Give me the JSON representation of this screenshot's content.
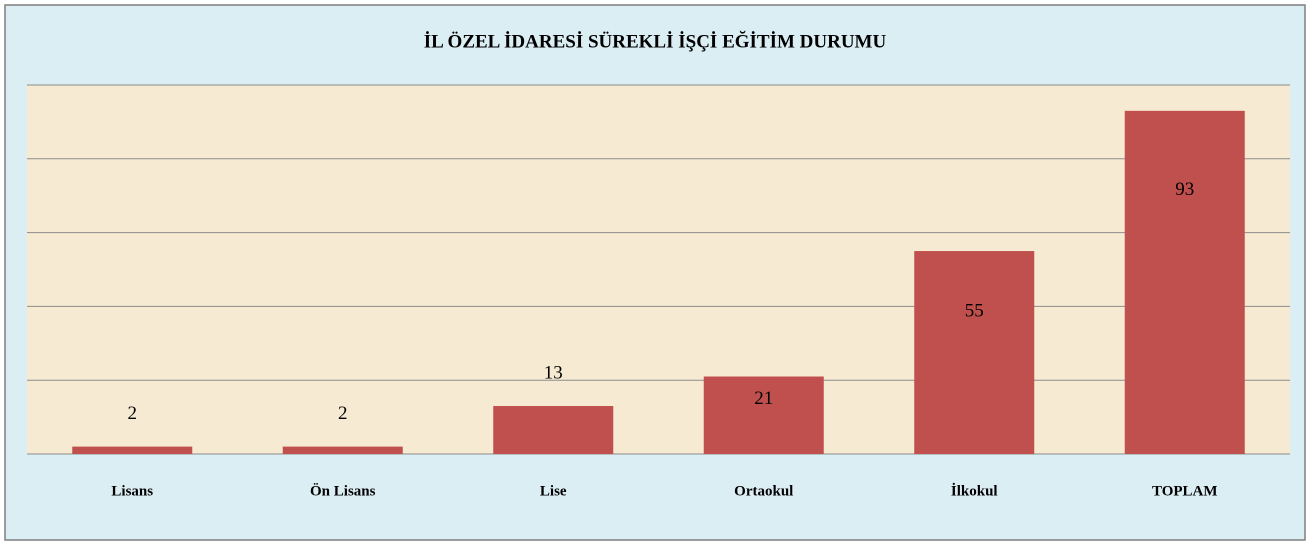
{
  "chart_data": {
    "type": "bar",
    "title": "İL ÖZEL İDARESİ SÜREKLİ İŞÇİ EĞİTİM DURUMU",
    "categories": [
      "Lisans",
      "Ön Lisans",
      "Lise",
      "Ortaokul",
      "İlkokul",
      "TOPLAM"
    ],
    "values": [
      2,
      2,
      13,
      21,
      55,
      93
    ],
    "color": "#c0504d",
    "ylim": [
      0,
      100
    ],
    "yticks": [
      0,
      20,
      40,
      60,
      80,
      100
    ],
    "grid": true
  }
}
